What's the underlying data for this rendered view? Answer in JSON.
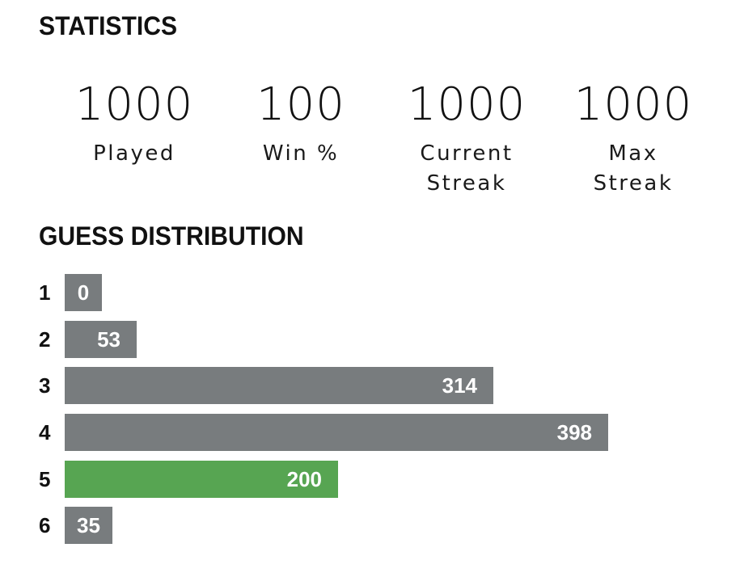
{
  "statistics": {
    "heading": "STATISTICS",
    "items": [
      {
        "value": "1000",
        "label": "Played"
      },
      {
        "value": "100",
        "label": "Win %"
      },
      {
        "value": "1000",
        "label": "Current\nStreak"
      },
      {
        "value": "1000",
        "label": "Max\nStreak"
      }
    ]
  },
  "distribution": {
    "heading": "GUESS DISTRIBUTION",
    "max_count": 398,
    "rows": [
      {
        "guess": "1",
        "count": 0,
        "count_label": "0",
        "highlight": false
      },
      {
        "guess": "2",
        "count": 53,
        "count_label": "53",
        "highlight": false
      },
      {
        "guess": "3",
        "count": 314,
        "count_label": "314",
        "highlight": false
      },
      {
        "guess": "4",
        "count": 398,
        "count_label": "398",
        "highlight": false
      },
      {
        "guess": "5",
        "count": 200,
        "count_label": "200",
        "highlight": true
      },
      {
        "guess": "6",
        "count": 35,
        "count_label": "35",
        "highlight": false
      }
    ]
  },
  "colors": {
    "bar_default": "#787c7e",
    "bar_highlight": "#57a552",
    "bar_text": "#ffffff",
    "text": "#111111"
  }
}
